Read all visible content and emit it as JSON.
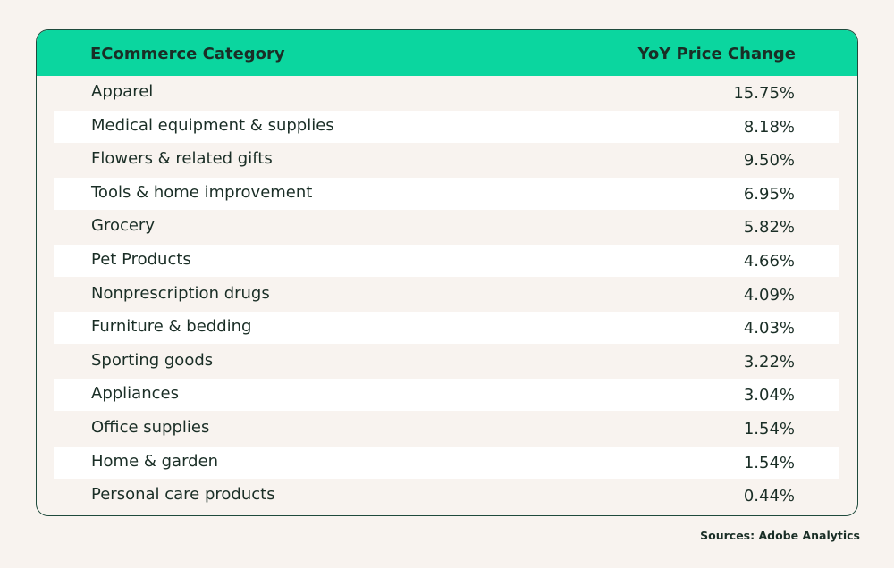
{
  "chart_data": {
    "type": "table",
    "columns": [
      "ECommerce Category",
      "YoY Price Change"
    ],
    "rows": [
      {
        "category": "Apparel",
        "change": "15.75%"
      },
      {
        "category": "Medical equipment & supplies",
        "change": "8.18%"
      },
      {
        "category": "Flowers & related gifts",
        "change": "9.50%"
      },
      {
        "category": "Tools & home improvement",
        "change": "6.95%"
      },
      {
        "category": "Grocery",
        "change": "5.82%"
      },
      {
        "category": "Pet Products",
        "change": "4.66%"
      },
      {
        "category": "Nonprescription drugs",
        "change": "4.09%"
      },
      {
        "category": "Furniture & bedding",
        "change": "4.03%"
      },
      {
        "category": "Sporting goods",
        "change": "3.22%"
      },
      {
        "category": "Appliances",
        "change": "3.04%"
      },
      {
        "category": "Office supplies",
        "change": "1.54%"
      },
      {
        "category": "Home & garden",
        "change": "1.54%"
      },
      {
        "category": "Personal care products",
        "change": "0.44%"
      }
    ],
    "source": "Sources: Adobe Analytics"
  },
  "colors": {
    "header": "#0bd69f",
    "border": "#1f4a3c",
    "background": "#f8f3ef",
    "stripe": "#ffffff",
    "text": "#1a2e26"
  }
}
